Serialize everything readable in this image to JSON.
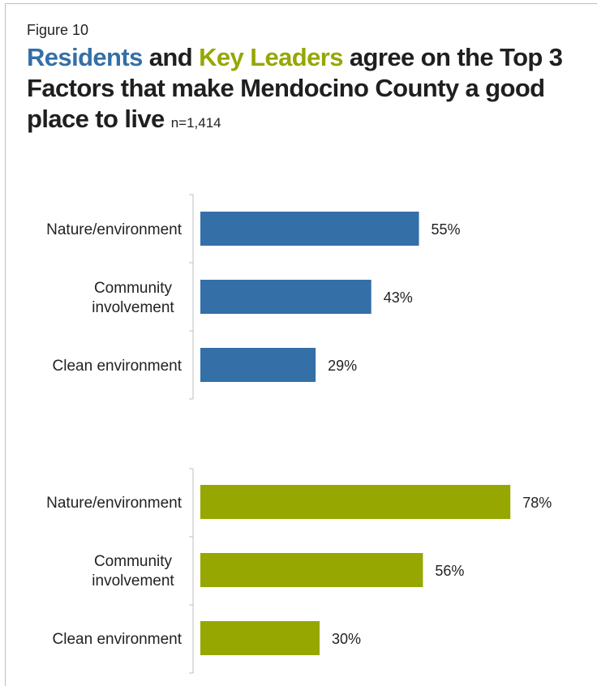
{
  "figure_label": "Figure 10",
  "title": {
    "part1": "Residents",
    "part2": " and ",
    "part3": "Key Leaders",
    "part4": " agree on the Top 3 Factors that make Mendocino County a good place to live",
    "n": "n=1,414"
  },
  "colors": {
    "residents": "#346fa8",
    "key_leaders": "#95a700",
    "axis": "#bfbfbf"
  },
  "chart_data": {
    "type": "bar",
    "orientation": "horizontal",
    "xlim": [
      0,
      100
    ],
    "groups": [
      {
        "name": "Residents",
        "categories": [
          [
            "Nature/environment"
          ],
          [
            "Community",
            "involvement"
          ],
          [
            "Clean environment"
          ]
        ],
        "values": [
          55,
          43,
          29
        ],
        "labels": [
          "55%",
          "43%",
          "29%"
        ]
      },
      {
        "name": "Key Leaders",
        "categories": [
          [
            "Nature/environment"
          ],
          [
            "Community",
            "involvement"
          ],
          [
            "Clean environment"
          ]
        ],
        "values": [
          78,
          56,
          30
        ],
        "labels": [
          "78%",
          "56%",
          "30%"
        ]
      }
    ]
  }
}
